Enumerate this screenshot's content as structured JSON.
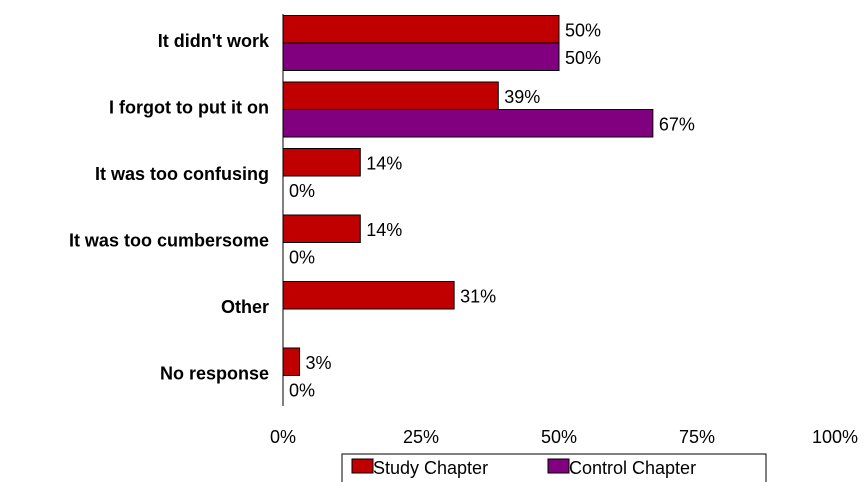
{
  "chart_data": {
    "type": "bar",
    "orientation": "horizontal",
    "categories": [
      "It didn't work",
      "I forgot to put it on",
      "It was too confusing",
      "It was too cumbersome",
      "Other",
      "No response"
    ],
    "series": [
      {
        "name": "Study Chapter",
        "values": [
          50,
          39,
          14,
          14,
          31,
          3
        ],
        "labels": [
          "50%",
          "39%",
          "14%",
          "14%",
          "31%",
          "3%"
        ],
        "color": "#C00000"
      },
      {
        "name": "Control Chapter",
        "values": [
          50,
          67,
          0,
          0,
          null,
          0
        ],
        "labels": [
          "50%",
          "67%",
          "0%",
          "0%",
          null,
          "0%"
        ],
        "color": "#800080"
      }
    ],
    "xlim": [
      0,
      100
    ],
    "xticks": [
      "0%",
      "25%",
      "50%",
      "75%",
      "100%"
    ],
    "grid": false,
    "legend": "bottom",
    "title": "",
    "xlabel": "",
    "ylabel": ""
  }
}
